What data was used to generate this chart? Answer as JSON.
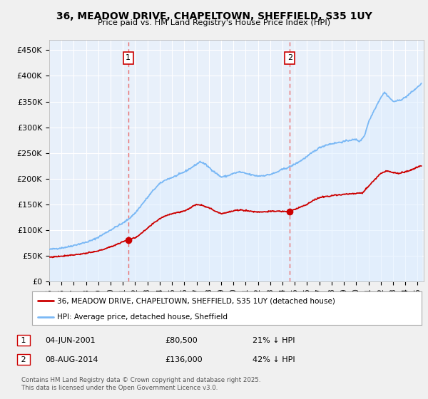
{
  "title": "36, MEADOW DRIVE, CHAPELTOWN, SHEFFIELD, S35 1UY",
  "subtitle": "Price paid vs. HM Land Registry's House Price Index (HPI)",
  "ylabel_ticks": [
    "£0",
    "£50K",
    "£100K",
    "£150K",
    "£200K",
    "£250K",
    "£300K",
    "£350K",
    "£400K",
    "£450K"
  ],
  "ytick_values": [
    0,
    50000,
    100000,
    150000,
    200000,
    250000,
    300000,
    350000,
    400000,
    450000
  ],
  "ylim": [
    0,
    470000
  ],
  "xlim_start": 1995.0,
  "xlim_end": 2025.5,
  "hpi_color": "#7ab8f5",
  "hpi_fill_color": "#ddeeff",
  "price_color": "#cc0000",
  "dashed_color": "#e87070",
  "marker1_x": 2001.43,
  "marker2_x": 2014.6,
  "marker1_y": 80500,
  "marker2_y": 136000,
  "legend_label1": "36, MEADOW DRIVE, CHAPELTOWN, SHEFFIELD, S35 1UY (detached house)",
  "legend_label2": "HPI: Average price, detached house, Sheffield",
  "note1_label": "1",
  "note1_date": "04-JUN-2001",
  "note1_price": "£80,500",
  "note1_hpi": "21% ↓ HPI",
  "note2_label": "2",
  "note2_date": "08-AUG-2014",
  "note2_price": "£136,000",
  "note2_hpi": "42% ↓ HPI",
  "footer": "Contains HM Land Registry data © Crown copyright and database right 2025.\nThis data is licensed under the Open Government Licence v3.0.",
  "background_color": "#f0f0f0",
  "plot_bg_color": "#e8f0fa",
  "grid_color": "#ffffff"
}
